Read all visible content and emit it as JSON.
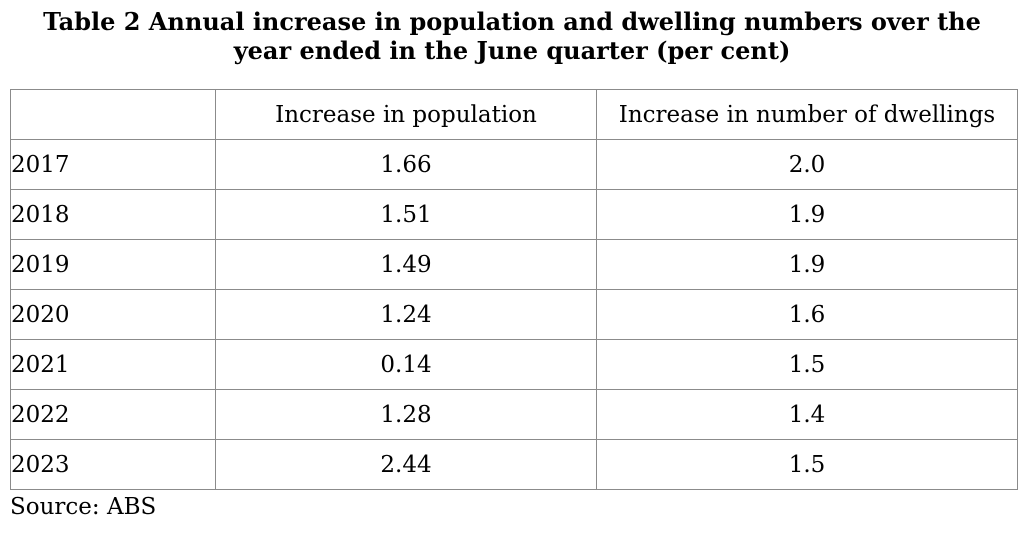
{
  "title": {
    "line1": "Table 2 Annual increase in population and dwelling numbers over the",
    "line2": "year ended in the June quarter (per cent)"
  },
  "table": {
    "columns": [
      "",
      "Increase in population",
      "Increase in number of dwellings"
    ],
    "rows": [
      [
        "2017",
        "1.66",
        "2.0"
      ],
      [
        "2018",
        "1.51",
        "1.9"
      ],
      [
        "2019",
        "1.49",
        "1.9"
      ],
      [
        "2020",
        "1.24",
        "1.6"
      ],
      [
        "2021",
        "0.14",
        "1.5"
      ],
      [
        "2022",
        "1.28",
        "1.4"
      ],
      [
        "2023",
        "2.44",
        "1.5"
      ]
    ]
  },
  "source": "Source: ABS",
  "colors": {
    "border": "#8b8b8b",
    "text": "#000000",
    "background": "#ffffff"
  },
  "chart_data": {
    "type": "table",
    "title": "Table 2 Annual increase in population and dwelling numbers over the year ended in the June quarter (per cent)",
    "categories": [
      "2017",
      "2018",
      "2019",
      "2020",
      "2021",
      "2022",
      "2023"
    ],
    "series": [
      {
        "name": "Increase in population",
        "values": [
          1.66,
          1.51,
          1.49,
          1.24,
          0.14,
          1.28,
          2.44
        ]
      },
      {
        "name": "Increase in number of dwellings",
        "values": [
          2.0,
          1.9,
          1.9,
          1.6,
          1.5,
          1.4,
          1.5
        ]
      }
    ],
    "source": "Source: ABS"
  }
}
